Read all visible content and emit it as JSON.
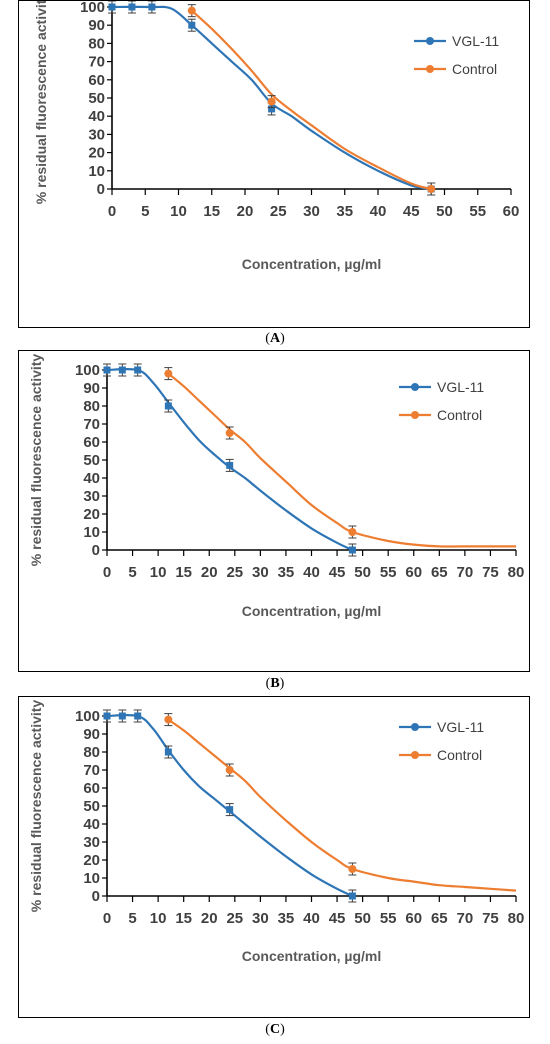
{
  "chart_data": [
    {
      "id": "A",
      "type": "line",
      "caption": "A",
      "xlabel": "Concentration, µg/ml",
      "ylabel": "% residual fluorescence activity",
      "xlim": [
        0,
        60
      ],
      "ylim": [
        0,
        100
      ],
      "xticks": [
        0,
        5,
        10,
        15,
        20,
        25,
        30,
        35,
        40,
        45,
        50,
        55,
        60
      ],
      "yticks": [
        0,
        10,
        20,
        30,
        40,
        50,
        60,
        70,
        80,
        90,
        100
      ],
      "legend_position": "top-right",
      "series": [
        {
          "name": "VGL-11",
          "color": "#2E75B6",
          "marker": "square",
          "x": [
            0,
            3,
            6,
            12,
            24,
            48
          ],
          "y": [
            100,
            100,
            100,
            90,
            44,
            0
          ],
          "curve": [
            [
              0,
              100
            ],
            [
              6,
              100
            ],
            [
              9,
              99
            ],
            [
              12,
              90
            ],
            [
              15,
              80
            ],
            [
              18,
              70
            ],
            [
              21,
              60
            ],
            [
              24,
              47
            ],
            [
              27,
              40
            ],
            [
              30,
              32
            ],
            [
              35,
              20
            ],
            [
              40,
              10
            ],
            [
              45,
              2
            ],
            [
              48,
              0
            ]
          ]
        },
        {
          "name": "Control",
          "color": "#ED7D31",
          "marker": "circle",
          "x": [
            12,
            24,
            48
          ],
          "y": [
            98,
            48,
            0
          ],
          "curve": [
            [
              12,
              98
            ],
            [
              15,
              88
            ],
            [
              18,
              77
            ],
            [
              21,
              65
            ],
            [
              24,
              52
            ],
            [
              27,
              43
            ],
            [
              30,
              35
            ],
            [
              35,
              22
            ],
            [
              40,
              12
            ],
            [
              45,
              3
            ],
            [
              48,
              0
            ]
          ]
        }
      ]
    },
    {
      "id": "B",
      "type": "line",
      "caption": "B",
      "xlabel": "Concentration, µg/ml",
      "ylabel": "% residual fluorescence activity",
      "xlim": [
        0,
        80
      ],
      "ylim": [
        0,
        100
      ],
      "xticks": [
        0,
        5,
        10,
        15,
        20,
        25,
        30,
        35,
        40,
        45,
        50,
        55,
        60,
        65,
        70,
        75,
        80
      ],
      "yticks": [
        0,
        10,
        20,
        30,
        40,
        50,
        60,
        70,
        80,
        90,
        100
      ],
      "legend_position": "top-right",
      "series": [
        {
          "name": "VGL-11",
          "color": "#2E75B6",
          "marker": "square",
          "x": [
            0,
            3,
            6,
            12,
            24,
            48
          ],
          "y": [
            100,
            100,
            100,
            80,
            47,
            0
          ],
          "curve": [
            [
              0,
              100
            ],
            [
              6,
              100
            ],
            [
              9,
              93
            ],
            [
              12,
              82
            ],
            [
              15,
              71
            ],
            [
              18,
              61
            ],
            [
              21,
              53
            ],
            [
              24,
              46
            ],
            [
              27,
              40
            ],
            [
              30,
              33
            ],
            [
              35,
              22
            ],
            [
              40,
              12
            ],
            [
              45,
              4
            ],
            [
              48,
              0
            ]
          ]
        },
        {
          "name": "Control",
          "color": "#ED7D31",
          "marker": "circle",
          "x": [
            12,
            24,
            48
          ],
          "y": [
            98,
            65,
            10
          ],
          "curve": [
            [
              12,
              98
            ],
            [
              15,
              91
            ],
            [
              18,
              83
            ],
            [
              21,
              75
            ],
            [
              24,
              67
            ],
            [
              27,
              60
            ],
            [
              30,
              51
            ],
            [
              35,
              38
            ],
            [
              40,
              25
            ],
            [
              45,
              15
            ],
            [
              48,
              10
            ],
            [
              55,
              5
            ],
            [
              60,
              3
            ],
            [
              65,
              2
            ],
            [
              70,
              2
            ],
            [
              80,
              2
            ]
          ]
        }
      ]
    },
    {
      "id": "C",
      "type": "line",
      "caption": "C",
      "xlabel": "Concentration, µg/ml",
      "ylabel": "% residual fluorescence activity",
      "xlim": [
        0,
        80
      ],
      "ylim": [
        0,
        100
      ],
      "xticks": [
        0,
        5,
        10,
        15,
        20,
        25,
        30,
        35,
        40,
        45,
        50,
        55,
        60,
        65,
        70,
        75,
        80
      ],
      "yticks": [
        0,
        10,
        20,
        30,
        40,
        50,
        60,
        70,
        80,
        90,
        100
      ],
      "legend_position": "top-right",
      "series": [
        {
          "name": "VGL-11",
          "color": "#2E75B6",
          "marker": "square",
          "x": [
            0,
            3,
            6,
            12,
            24,
            48
          ],
          "y": [
            100,
            100,
            100,
            80,
            48,
            0
          ],
          "curve": [
            [
              0,
              100
            ],
            [
              6,
              100
            ],
            [
              9,
              93
            ],
            [
              12,
              81
            ],
            [
              15,
              70
            ],
            [
              18,
              61
            ],
            [
              21,
              54
            ],
            [
              24,
              47
            ],
            [
              27,
              40
            ],
            [
              30,
              33
            ],
            [
              35,
              22
            ],
            [
              40,
              12
            ],
            [
              45,
              4
            ],
            [
              48,
              0
            ]
          ]
        },
        {
          "name": "Control",
          "color": "#ED7D31",
          "marker": "circle",
          "x": [
            12,
            24,
            48
          ],
          "y": [
            98,
            70,
            15
          ],
          "curve": [
            [
              12,
              98
            ],
            [
              15,
              92
            ],
            [
              18,
              85
            ],
            [
              21,
              78
            ],
            [
              24,
              71
            ],
            [
              27,
              64
            ],
            [
              30,
              55
            ],
            [
              35,
              42
            ],
            [
              40,
              30
            ],
            [
              45,
              20
            ],
            [
              48,
              15
            ],
            [
              55,
              10
            ],
            [
              60,
              8
            ],
            [
              65,
              6
            ],
            [
              70,
              5
            ],
            [
              75,
              4
            ],
            [
              80,
              3
            ]
          ]
        }
      ]
    }
  ]
}
